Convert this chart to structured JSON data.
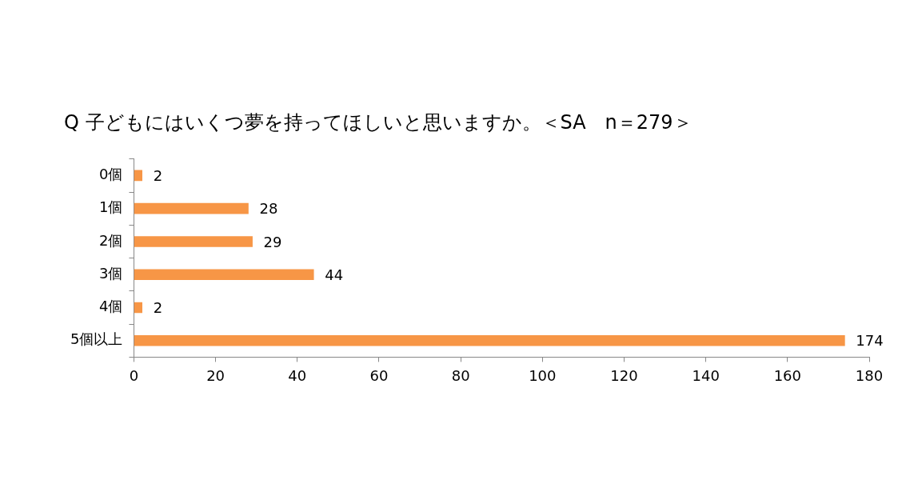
{
  "chart_data": {
    "type": "bar",
    "orientation": "horizontal",
    "title": "Q 子どもにはいくつ夢を持ってほしいと思いますか。＜SA　n＝279＞",
    "categories": [
      "0個",
      "1個",
      "2個",
      "3個",
      "4個",
      "5個以上"
    ],
    "values": [
      2,
      28,
      29,
      44,
      2,
      174
    ],
    "color": "#f79646",
    "xlim": [
      0,
      180
    ],
    "xticks": [
      0,
      20,
      40,
      60,
      80,
      100,
      120,
      140,
      160,
      180
    ],
    "data_labels": true,
    "grid": false,
    "legend": false
  }
}
